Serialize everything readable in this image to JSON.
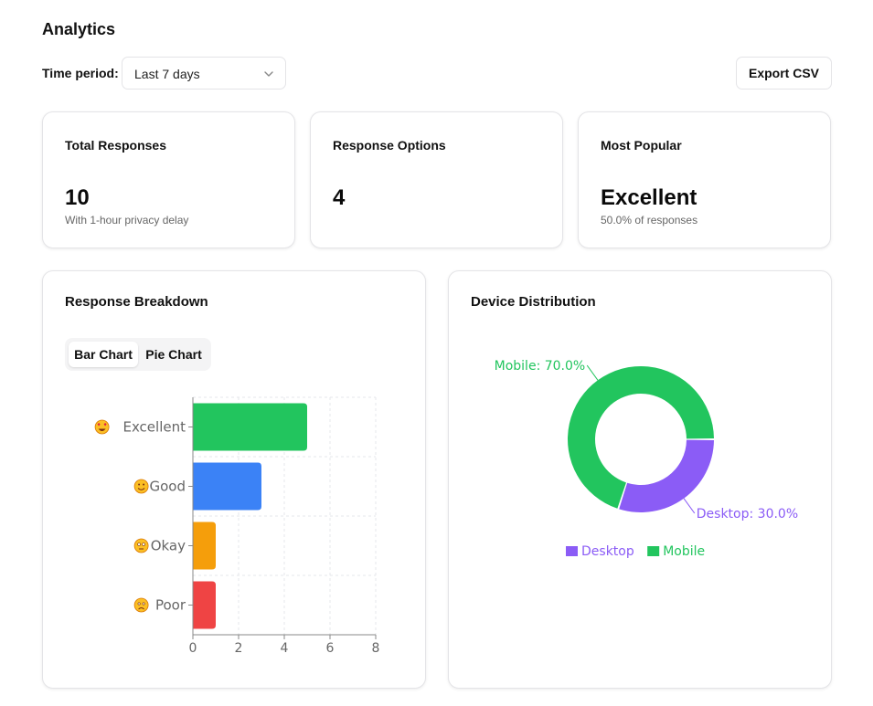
{
  "page": {
    "title": "Analytics"
  },
  "toolbar": {
    "period_label": "Time period:",
    "period_value": "Last 7 days",
    "export_label": "Export CSV"
  },
  "stats": [
    {
      "title": "Total Responses",
      "value": "10",
      "sub": "With 1-hour privacy delay"
    },
    {
      "title": "Response Options",
      "value": "4",
      "sub": ""
    },
    {
      "title": "Most Popular",
      "value": "Excellent",
      "sub": "50.0% of responses"
    }
  ],
  "breakdown": {
    "title": "Response Breakdown",
    "tabs": [
      "Bar Chart",
      "Pie Chart"
    ],
    "active_tab": "Bar Chart"
  },
  "device": {
    "title": "Device Distribution"
  },
  "chart_data": [
    {
      "type": "bar",
      "orientation": "horizontal",
      "categories": [
        "Excellent",
        "Good",
        "Okay",
        "Poor"
      ],
      "category_icons": [
        "heart-eyes-emoji-icon",
        "smiling-emoji-icon",
        "flushed-emoji-icon",
        "worried-emoji-icon"
      ],
      "values": [
        5,
        3,
        1,
        1
      ],
      "colors": [
        "#22c55e",
        "#3b82f6",
        "#f59e0b",
        "#ef4444"
      ],
      "xlim": [
        0,
        8
      ],
      "xticks": [
        "0",
        "2",
        "4",
        "6",
        "8"
      ],
      "grid": true
    },
    {
      "type": "pie",
      "variant": "donut",
      "slices": [
        {
          "name": "Mobile",
          "value": 70.0,
          "label": "Mobile: 70.0%",
          "color": "#22c55e"
        },
        {
          "name": "Desktop",
          "value": 30.0,
          "label": "Desktop: 30.0%",
          "color": "#8b5cf6"
        }
      ],
      "legend": [
        {
          "name": "Desktop",
          "color": "#8b5cf6"
        },
        {
          "name": "Mobile",
          "color": "#22c55e"
        }
      ],
      "legend_position": "bottom"
    }
  ]
}
